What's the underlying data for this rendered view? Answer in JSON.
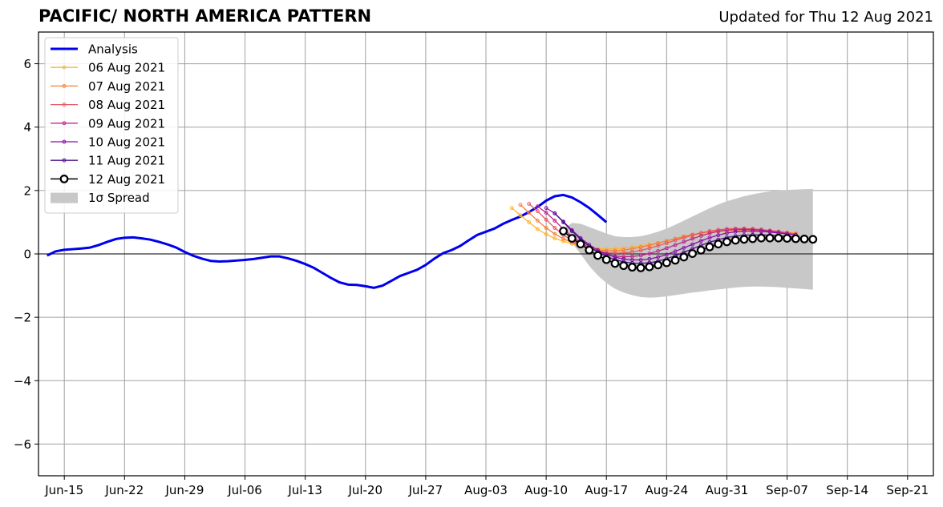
{
  "title": "PACIFIC/ NORTH AMERICA PATTERN",
  "subtitle": "Updated for Thu 12 Aug 2021",
  "chart_data": {
    "type": "line",
    "title": "PACIFIC/ NORTH AMERICA PATTERN",
    "xlabel": "",
    "ylabel": "",
    "xlim": [
      "2021-06-12",
      "2021-09-24"
    ],
    "ylim": [
      -7,
      7
    ],
    "yticks": [
      -6,
      -4,
      -2,
      0,
      2,
      4,
      6
    ],
    "ytick_labels": [
      "−6",
      "−4",
      "−2",
      "0",
      "2",
      "4",
      "6"
    ],
    "xticks": [
      "2021-06-15",
      "2021-06-22",
      "2021-06-29",
      "2021-07-06",
      "2021-07-13",
      "2021-07-20",
      "2021-07-27",
      "2021-08-03",
      "2021-08-10",
      "2021-08-17",
      "2021-08-24",
      "2021-08-31",
      "2021-09-07",
      "2021-09-14",
      "2021-09-21"
    ],
    "xtick_labels": [
      "Jun-15",
      "Jun-22",
      "Jun-29",
      "Jul-06",
      "Jul-13",
      "Jul-20",
      "Jul-27",
      "Aug-03",
      "Aug-10",
      "Aug-17",
      "Aug-24",
      "Aug-31",
      "Sep-07",
      "Sep-14",
      "Sep-21"
    ],
    "grid": true,
    "legend_position": "top-left",
    "series": [
      {
        "name": "Analysis",
        "color": "#0000ee",
        "style": "analysis",
        "start": "2021-06-13",
        "values": [
          -0.05,
          0.08,
          0.13,
          0.15,
          0.17,
          0.2,
          0.28,
          0.38,
          0.47,
          0.51,
          0.52,
          0.49,
          0.45,
          0.38,
          0.3,
          0.2,
          0.06,
          -0.06,
          -0.15,
          -0.22,
          -0.24,
          -0.23,
          -0.21,
          -0.19,
          -0.16,
          -0.12,
          -0.08,
          -0.08,
          -0.14,
          -0.22,
          -0.32,
          -0.44,
          -0.6,
          -0.76,
          -0.9,
          -0.97,
          -0.98,
          -1.02,
          -1.07,
          -1.0,
          -0.85,
          -0.7,
          -0.6,
          -0.5,
          -0.35,
          -0.15,
          0.02,
          0.12,
          0.25,
          0.43,
          0.6,
          0.7,
          0.8,
          0.95,
          1.07,
          1.18,
          1.32,
          1.48,
          1.68,
          1.82,
          1.86,
          1.78,
          1.63,
          1.45,
          1.23,
          1.0
        ]
      },
      {
        "name": "06 Aug 2021",
        "color": "#ffb330",
        "style": "forecast",
        "start": "2021-08-06",
        "values": [
          1.45,
          1.22,
          1.0,
          0.78,
          0.62,
          0.49,
          0.4,
          0.32,
          0.26,
          0.2,
          0.17,
          0.15,
          0.16,
          0.18,
          0.21,
          0.25,
          0.3,
          0.35,
          0.41,
          0.47,
          0.53,
          0.58,
          0.63,
          0.67,
          0.7,
          0.72,
          0.74,
          0.74,
          0.74,
          0.73,
          0.72,
          0.7,
          0.68,
          0.66
        ]
      },
      {
        "name": "07 Aug 2021",
        "color": "#f57f3a",
        "style": "forecast",
        "start": "2021-08-07",
        "values": [
          1.55,
          1.3,
          1.05,
          0.82,
          0.63,
          0.48,
          0.36,
          0.26,
          0.18,
          0.13,
          0.1,
          0.1,
          0.12,
          0.16,
          0.21,
          0.27,
          0.34,
          0.41,
          0.48,
          0.55,
          0.61,
          0.66,
          0.7,
          0.73,
          0.75,
          0.76,
          0.76,
          0.75,
          0.73,
          0.71,
          0.69,
          0.66,
          0.63
        ]
      },
      {
        "name": "08 Aug 2021",
        "color": "#e55869",
        "style": "forecast",
        "start": "2021-08-08",
        "values": [
          1.58,
          1.35,
          1.08,
          0.82,
          0.6,
          0.42,
          0.28,
          0.17,
          0.09,
          0.04,
          0.02,
          0.03,
          0.06,
          0.11,
          0.18,
          0.26,
          0.34,
          0.43,
          0.51,
          0.59,
          0.66,
          0.72,
          0.76,
          0.79,
          0.8,
          0.8,
          0.79,
          0.77,
          0.74,
          0.71,
          0.67,
          0.63
        ]
      },
      {
        "name": "09 Aug 2021",
        "color": "#b8298b",
        "style": "forecast",
        "start": "2021-08-09",
        "values": [
          1.5,
          1.3,
          1.05,
          0.78,
          0.55,
          0.36,
          0.2,
          0.07,
          -0.02,
          -0.07,
          -0.09,
          -0.08,
          -0.05,
          0.01,
          0.09,
          0.18,
          0.28,
          0.38,
          0.48,
          0.57,
          0.65,
          0.71,
          0.75,
          0.77,
          0.78,
          0.77,
          0.75,
          0.72,
          0.68,
          0.64,
          0.6
        ]
      },
      {
        "name": "10 Aug 2021",
        "color": "#8a10a6",
        "style": "forecast",
        "start": "2021-08-10",
        "values": [
          1.45,
          1.28,
          1.02,
          0.75,
          0.5,
          0.29,
          0.12,
          -0.01,
          -0.1,
          -0.16,
          -0.19,
          -0.19,
          -0.16,
          -0.1,
          -0.02,
          0.08,
          0.19,
          0.3,
          0.41,
          0.51,
          0.59,
          0.66,
          0.7,
          0.72,
          0.72,
          0.71,
          0.69,
          0.66,
          0.63,
          0.6
        ]
      },
      {
        "name": "11 Aug 2021",
        "color": "#4b0f8a",
        "style": "forecast",
        "start": "2021-08-11",
        "values": [
          1.28,
          1.0,
          0.72,
          0.46,
          0.24,
          0.06,
          -0.08,
          -0.18,
          -0.25,
          -0.29,
          -0.3,
          -0.28,
          -0.23,
          -0.15,
          -0.06,
          0.05,
          0.16,
          0.27,
          0.37,
          0.45,
          0.52,
          0.56,
          0.59,
          0.6,
          0.6,
          0.59,
          0.57,
          0.55,
          0.53
        ]
      },
      {
        "name": "12 Aug 2021",
        "color": "#000000",
        "style": "current",
        "start": "2021-08-12",
        "values": [
          0.72,
          0.49,
          0.31,
          0.12,
          -0.05,
          -0.18,
          -0.3,
          -0.37,
          -0.42,
          -0.44,
          -0.41,
          -0.35,
          -0.28,
          -0.2,
          -0.1,
          0.01,
          0.12,
          0.22,
          0.31,
          0.38,
          0.43,
          0.46,
          0.48,
          0.5,
          0.5,
          0.5,
          0.49,
          0.48,
          0.47,
          0.46
        ]
      }
    ],
    "spread": {
      "name": "1σ Spread",
      "color": "#c8c8c8",
      "start": "2021-08-12",
      "upper": [
        0.78,
        0.98,
        0.95,
        0.85,
        0.75,
        0.64,
        0.56,
        0.53,
        0.53,
        0.56,
        0.62,
        0.7,
        0.8,
        0.92,
        1.05,
        1.18,
        1.31,
        1.44,
        1.56,
        1.66,
        1.74,
        1.82,
        1.88,
        1.93,
        1.97,
        2.0,
        2.02,
        2.03,
        2.04,
        2.05
      ],
      "lower": [
        0.72,
        0.35,
        0.0,
        -0.38,
        -0.68,
        -0.92,
        -1.1,
        -1.22,
        -1.3,
        -1.36,
        -1.38,
        -1.37,
        -1.34,
        -1.3,
        -1.26,
        -1.22,
        -1.19,
        -1.15,
        -1.12,
        -1.09,
        -1.06,
        -1.04,
        -1.03,
        -1.03,
        -1.04,
        -1.05,
        -1.07,
        -1.09,
        -1.11,
        -1.13
      ]
    }
  }
}
